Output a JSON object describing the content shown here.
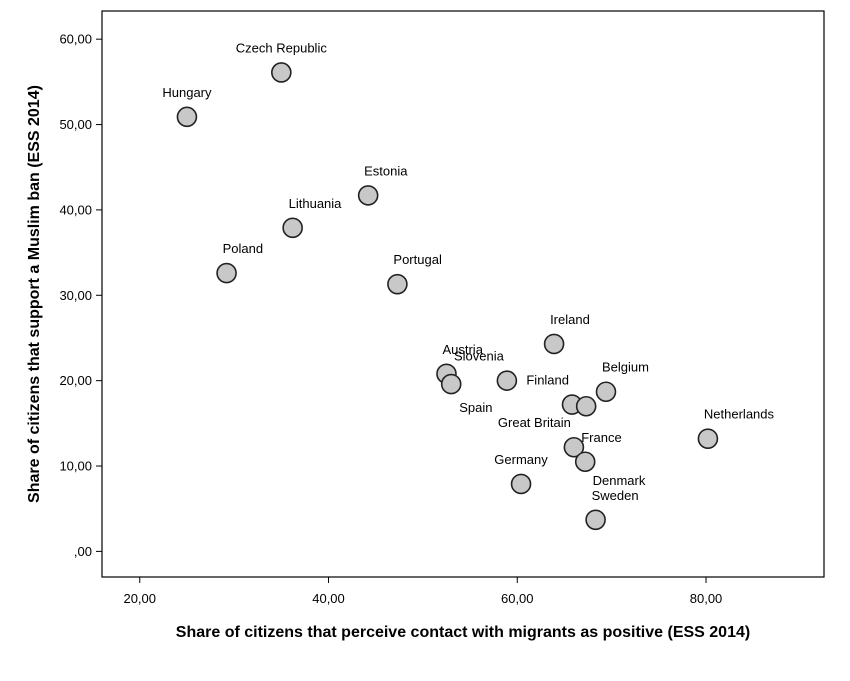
{
  "chart_data": {
    "type": "scatter",
    "xlabel": "Share of citizens that perceive contact with migrants as positive (ESS 2014)",
    "ylabel": "Share of citizens that support a Muslim ban (ESS 2014)",
    "xlim": [
      16.0,
      92.5
    ],
    "ylim": [
      -3.0,
      63.3
    ],
    "xticks": [
      {
        "value": 20,
        "label": "20,00"
      },
      {
        "value": 40,
        "label": "40,00"
      },
      {
        "value": 60,
        "label": "60,00"
      },
      {
        "value": 80,
        "label": "80,00"
      }
    ],
    "yticks": [
      {
        "value": 0,
        "label": ",00"
      },
      {
        "value": 10,
        "label": "10,00"
      },
      {
        "value": 20,
        "label": "20,00"
      },
      {
        "value": 30,
        "label": "30,00"
      },
      {
        "value": 40,
        "label": "40,00"
      },
      {
        "value": 50,
        "label": "50,00"
      },
      {
        "value": 60,
        "label": "60,00"
      }
    ],
    "grid": false,
    "legend": "none",
    "point_fill": "#c8c8c8",
    "point_stroke": "#222222",
    "points": [
      {
        "label": "Czech Republic",
        "x": 35.0,
        "y": 56.1,
        "label_pos": "above"
      },
      {
        "label": "Hungary",
        "x": 25.0,
        "y": 50.9,
        "label_pos": "above"
      },
      {
        "label": "Estonia",
        "x": 44.2,
        "y": 41.7,
        "label_pos": "above-right"
      },
      {
        "label": "Lithuania",
        "x": 36.2,
        "y": 37.9,
        "label_pos": "above-right"
      },
      {
        "label": "Poland",
        "x": 29.2,
        "y": 32.6,
        "label_pos": "above-right"
      },
      {
        "label": "Portugal",
        "x": 47.3,
        "y": 31.3,
        "label_pos": "above-right"
      },
      {
        "label": "Ireland",
        "x": 63.9,
        "y": 24.3,
        "label_pos": "above-right"
      },
      {
        "label": "Slovenia",
        "x": 58.9,
        "y": 20.0,
        "label_pos": "above-left"
      },
      {
        "label": "Austria",
        "x": 52.5,
        "y": 20.8,
        "label_pos": "above-right"
      },
      {
        "label": "Spain",
        "x": 53.0,
        "y": 19.6,
        "label_pos": "below-right"
      },
      {
        "label": "Finland",
        "x": 65.8,
        "y": 17.2,
        "label_pos": "above-left"
      },
      {
        "label": "Belgium",
        "x": 69.4,
        "y": 18.7,
        "label_pos": "above-right"
      },
      {
        "label": "",
        "x": 67.3,
        "y": 17.0,
        "label_pos": "none"
      },
      {
        "label": "Great Britain",
        "x": 66.0,
        "y": 12.2,
        "label_pos": "above-left"
      },
      {
        "label": "France",
        "x": 67.2,
        "y": 10.5,
        "label_pos": "above-right"
      },
      {
        "label": "Netherlands",
        "x": 80.2,
        "y": 13.2,
        "label_pos": "above-right"
      },
      {
        "label": "Germany",
        "x": 60.4,
        "y": 7.9,
        "label_pos": "above"
      },
      {
        "label": "Denmark",
        "x": 68.3,
        "y": 3.7,
        "label_pos": "above-right-far"
      },
      {
        "label": "Sweden",
        "x": 68.3,
        "y": 3.7,
        "label_pos": "above-right"
      }
    ]
  }
}
